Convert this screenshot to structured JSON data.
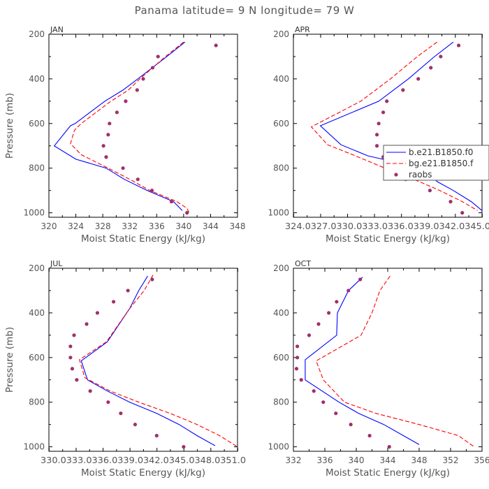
{
  "title": "Panama  latitude= 9 N longitude= 79 W",
  "colors": {
    "model1": "#0000ff",
    "model2": "#ff0000",
    "raobs": "#a0306a"
  },
  "legend": {
    "entries": [
      {
        "name": "b.e21.B1850.f0",
        "style": "solid"
      },
      {
        "name": "bg.e21.B1850.f",
        "style": "dashed"
      },
      {
        "name": "raobs",
        "style": "dot"
      }
    ]
  },
  "chart_data": [
    {
      "type": "line",
      "month": "JAN",
      "xlabel": "Moist Static Energy (kJ/kg)",
      "ylabel": "Pressure (mb)",
      "xlim": [
        320,
        348
      ],
      "ylim": [
        1020,
        200
      ],
      "xticks": [
        "320",
        "324",
        "328",
        "332",
        "336",
        "340",
        "344",
        "348"
      ],
      "xtick_values": [
        320,
        324,
        328,
        332,
        336,
        340,
        344,
        348
      ],
      "yticks": [
        "200",
        "400",
        "600",
        "800",
        "1000"
      ],
      "yticks_values": [
        200,
        400,
        600,
        800,
        1000
      ],
      "series": [
        {
          "key": "model1",
          "pressure": [
            235,
            300,
            400,
            450,
            500,
            600,
            610,
            700,
            760,
            800,
            850,
            900,
            950,
            990
          ],
          "values": [
            340.2,
            337.5,
            333.2,
            331.0,
            328.3,
            323.9,
            323.2,
            320.8,
            324.0,
            328.5,
            331.2,
            334.6,
            338.5,
            339.8
          ]
        },
        {
          "key": "model2",
          "pressure": [
            235,
            300,
            400,
            450,
            500,
            600,
            630,
            690,
            740,
            800,
            850,
            900,
            950,
            980,
            1000
          ],
          "values": [
            340.0,
            337.3,
            333.5,
            331.8,
            329.2,
            324.8,
            323.8,
            323.2,
            324.8,
            328.8,
            332.0,
            335.0,
            339.0,
            340.5,
            340.8
          ]
        },
        {
          "key": "raobs",
          "pressure": [
            250,
            300,
            350,
            400,
            450,
            500,
            550,
            600,
            650,
            700,
            750,
            800,
            850,
            900,
            950,
            1000
          ],
          "values": [
            344.8,
            336.2,
            335.4,
            334.0,
            333.1,
            331.4,
            330.1,
            329.0,
            328.8,
            328.1,
            328.5,
            331.0,
            333.2,
            335.3,
            338.2,
            340.5
          ]
        }
      ]
    },
    {
      "type": "line",
      "month": "APR",
      "xlabel": "Moist Static Energy (kJ/kg)",
      "ylabel": "",
      "xlim": [
        324.0,
        345.0
      ],
      "ylim": [
        1020,
        200
      ],
      "xticks": [
        "324.0",
        "327.0",
        "330.0",
        "333.0",
        "336.0",
        "339.0",
        "342.0",
        "345.0"
      ],
      "xtick_values": [
        324.03,
        327.03,
        330.03,
        333.03,
        336.03,
        339.03,
        342.03,
        345.03
      ],
      "xticks_label_run": "324.0327.0330.0333.0336.0339.0342.0345.0",
      "yticks": [
        "200",
        "400",
        "600",
        "800",
        "1000"
      ],
      "yticks_values": [
        200,
        400,
        600,
        800,
        1000
      ],
      "series": [
        {
          "key": "model1",
          "pressure": [
            235,
            300,
            400,
            500,
            610,
            695,
            745,
            800,
            860,
            900,
            950,
            990
          ],
          "values": [
            341.8,
            339.7,
            336.8,
            333.5,
            327.0,
            329.3,
            332.3,
            338.3,
            340.0,
            341.8,
            343.8,
            345.0
          ]
        },
        {
          "key": "model2",
          "pressure": [
            235,
            300,
            400,
            500,
            615,
            695,
            740,
            800,
            860,
            900,
            950,
            990
          ],
          "values": [
            340.0,
            337.8,
            334.8,
            331.5,
            326.0,
            327.8,
            330.6,
            334.2,
            338.0,
            340.3,
            342.8,
            344.5
          ]
        },
        {
          "key": "raobs",
          "pressure": [
            250,
            300,
            350,
            400,
            450,
            500,
            550,
            600,
            650,
            700,
            750,
            800,
            820,
            850,
            900,
            950,
            1000
          ],
          "values": [
            342.4,
            340.4,
            339.3,
            337.9,
            336.2,
            334.4,
            334.0,
            333.5,
            333.3,
            333.3,
            334.0,
            336.7,
            337.5,
            336.5,
            339.2,
            341.5,
            342.8
          ]
        }
      ]
    },
    {
      "type": "line",
      "month": "JUL",
      "xlabel": "Moist Static Energy (kJ/kg)",
      "ylabel": "Pressure (mb)",
      "xlim": [
        330.0,
        351.0
      ],
      "ylim": [
        1020,
        200
      ],
      "xticks": [
        "330.0",
        "333.0",
        "336.0",
        "339.0",
        "342.0",
        "345.0",
        "348.0",
        "351.0"
      ],
      "xtick_values": [
        330.03,
        333.03,
        336.03,
        339.03,
        342.03,
        345.03,
        348.03,
        351.03
      ],
      "xticks_label_run": "330.0333.0336.0339.0342.0345.0348.0351.0",
      "yticks": [
        "200",
        "400",
        "600",
        "800",
        "1000"
      ],
      "yticks_values": [
        200,
        400,
        600,
        800,
        1000
      ],
      "series": [
        {
          "key": "model1",
          "pressure": [
            235,
            300,
            380,
            530,
            615,
            700,
            750,
            800,
            850,
            900,
            950,
            995
          ],
          "values": [
            341.0,
            340.0,
            339.0,
            336.5,
            333.6,
            334.3,
            336.5,
            339.0,
            342.0,
            344.5,
            346.5,
            348.5
          ]
        },
        {
          "key": "model2",
          "pressure": [
            230,
            300,
            380,
            530,
            610,
            690,
            750,
            800,
            850,
            900,
            950,
            1000
          ],
          "values": [
            341.6,
            340.6,
            339.0,
            336.4,
            333.4,
            334.0,
            336.8,
            340.0,
            343.5,
            346.5,
            349.0,
            351.0
          ]
        },
        {
          "key": "raobs",
          "pressure": [
            250,
            300,
            350,
            400,
            450,
            500,
            550,
            600,
            650,
            700,
            750,
            800,
            850,
            900,
            950,
            1000
          ],
          "values": [
            341.5,
            338.8,
            337.2,
            335.4,
            334.2,
            332.8,
            332.4,
            332.4,
            332.6,
            333.1,
            334.6,
            336.6,
            338.0,
            339.6,
            342.0,
            345.0
          ]
        }
      ]
    },
    {
      "type": "line",
      "month": "OCT",
      "xlabel": "Moist Static Energy (kJ/kg)",
      "ylabel": "",
      "xlim": [
        332,
        356
      ],
      "ylim": [
        1020,
        200
      ],
      "xticks": [
        "332",
        "336",
        "340",
        "344",
        "348",
        "352",
        "356"
      ],
      "xtick_values": [
        332,
        336,
        340,
        344,
        348,
        352,
        356
      ],
      "yticks": [
        "200",
        "400",
        "600",
        "800",
        "1000"
      ],
      "yticks_values": [
        200,
        400,
        600,
        800,
        1000
      ],
      "series": [
        {
          "key": "model1",
          "pressure": [
            240,
            300,
            400,
            500,
            610,
            700,
            800,
            850,
            900,
            950,
            990
          ],
          "values": [
            340.8,
            339.0,
            337.6,
            337.5,
            333.5,
            333.5,
            337.8,
            340.3,
            343.5,
            346.0,
            348.0
          ]
        },
        {
          "key": "model2",
          "pressure": [
            235,
            300,
            400,
            500,
            615,
            700,
            800,
            850,
            900,
            950,
            1000
          ],
          "values": [
            344.3,
            343.0,
            342.0,
            340.6,
            334.9,
            335.8,
            338.5,
            342.5,
            348.0,
            353.0,
            355.0
          ]
        },
        {
          "key": "raobs",
          "pressure": [
            250,
            300,
            350,
            400,
            450,
            500,
            550,
            600,
            650,
            700,
            750,
            800,
            850,
            900,
            950,
            1000
          ],
          "values": [
            340.5,
            339.0,
            337.5,
            336.5,
            335.2,
            334.0,
            332.5,
            332.5,
            332.4,
            333.0,
            334.6,
            335.8,
            337.4,
            339.3,
            341.7,
            344.2
          ]
        }
      ]
    }
  ]
}
